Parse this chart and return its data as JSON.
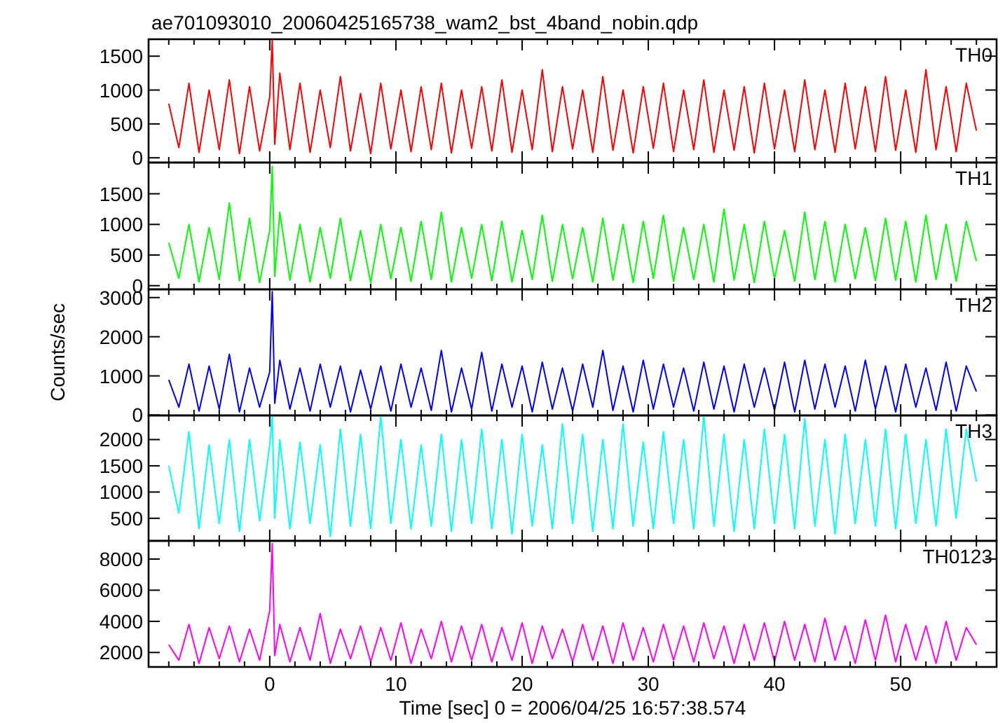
{
  "chart_data": [
    {
      "type": "line",
      "title": "ae701093010_20060425165738_wam2_bst_4band_nobin.qdp",
      "xlim": [
        -9.6,
        57.6
      ],
      "ylim": [
        -70,
        1750
      ],
      "yticks": [
        0,
        500,
        1000,
        1500
      ],
      "tick_labels": "y",
      "xticks": [
        {
          "value": -8,
          "label": null
        },
        {
          "value": -6,
          "label": null
        },
        {
          "value": -4,
          "label": null
        },
        {
          "value": -2,
          "label": null
        },
        0,
        {
          "value": 2,
          "label": null
        },
        {
          "value": 4,
          "label": null
        },
        {
          "value": 6,
          "label": null
        },
        {
          "value": 8,
          "label": null
        },
        10,
        {
          "value": 12,
          "label": null
        },
        {
          "value": 14,
          "label": null
        },
        {
          "value": 16,
          "label": null
        },
        {
          "value": 18,
          "label": null
        },
        20,
        {
          "value": 22,
          "label": null
        },
        {
          "value": 24,
          "label": null
        },
        {
          "value": 26,
          "label": null
        },
        {
          "value": 28,
          "label": null
        },
        30,
        {
          "value": 32,
          "label": null
        },
        {
          "value": 34,
          "label": null
        },
        {
          "value": 36,
          "label": null
        },
        {
          "value": 38,
          "label": null
        },
        40,
        {
          "value": 42,
          "label": null
        },
        {
          "value": 44,
          "label": null
        },
        {
          "value": 46,
          "label": null
        },
        {
          "value": 48,
          "label": null
        },
        50,
        {
          "value": 52,
          "label": null
        },
        {
          "value": 54,
          "label": null
        },
        {
          "value": 56,
          "label": null
        }
      ],
      "x": [
        -8,
        -7.2,
        -6.4,
        -5.6,
        -4.8,
        -4,
        -3.2,
        -2.4,
        -1.6,
        -0.8,
        0,
        0.2,
        0.4,
        0.8,
        1.6,
        2.4,
        3.2,
        4,
        4.8,
        5.6,
        6.4,
        7.2,
        8,
        8.8,
        9.6,
        10.4,
        11.2,
        12,
        12.8,
        13.6,
        14.4,
        15.2,
        16,
        16.8,
        17.6,
        18.4,
        19.2,
        20,
        20.8,
        21.6,
        22.4,
        23.2,
        24,
        24.8,
        25.6,
        26.4,
        27.2,
        28,
        28.8,
        29.6,
        30.4,
        31.2,
        32,
        32.8,
        33.6,
        34.4,
        35.2,
        36,
        36.8,
        37.6,
        38.4,
        39.2,
        40,
        40.8,
        41.6,
        42.4,
        43.2,
        44,
        44.8,
        45.6,
        46.4,
        47.2,
        48,
        48.8,
        49.6,
        50.4,
        51.2,
        52,
        52.8,
        53.6,
        54.4,
        55.2,
        56
      ],
      "series": [
        {
          "name": "TH0",
          "color": "#ff0000",
          "values": [
            800,
            150,
            1100,
            80,
            1000,
            120,
            1150,
            60,
            1050,
            100,
            900,
            1750,
            200,
            1250,
            120,
            1100,
            80,
            1000,
            150,
            1200,
            100,
            950,
            60,
            1100,
            130,
            1000,
            90,
            1050,
            120,
            1100,
            70,
            1000,
            140,
            1050,
            100,
            1150,
            80,
            1000,
            120,
            1300,
            90,
            1050,
            130,
            1000,
            80,
            1200,
            110,
            1000,
            70,
            1050,
            140,
            1100,
            90,
            1000,
            120,
            1150,
            80,
            1000,
            110,
            1050,
            70,
            1100,
            130,
            1000,
            90,
            1150,
            120,
            1000,
            80,
            1100,
            130,
            1050,
            90,
            1200,
            110,
            1000,
            80,
            1300,
            120,
            1050,
            90,
            1100,
            400
          ]
        }
      ]
    },
    {
      "type": "line",
      "xlim": [
        -9.6,
        57.6
      ],
      "ylim": [
        -60,
        2010
      ],
      "yticks": [
        0,
        500,
        1000,
        1500
      ],
      "tick_labels": "y",
      "xticks": [
        {
          "value": -8,
          "label": null
        },
        {
          "value": -6,
          "label": null
        },
        {
          "value": -4,
          "label": null
        },
        {
          "value": -2,
          "label": null
        },
        0,
        {
          "value": 2,
          "label": null
        },
        {
          "value": 4,
          "label": null
        },
        {
          "value": 6,
          "label": null
        },
        {
          "value": 8,
          "label": null
        },
        10,
        {
          "value": 12,
          "label": null
        },
        {
          "value": 14,
          "label": null
        },
        {
          "value": 16,
          "label": null
        },
        {
          "value": 18,
          "label": null
        },
        20,
        {
          "value": 22,
          "label": null
        },
        {
          "value": 24,
          "label": null
        },
        {
          "value": 26,
          "label": null
        },
        {
          "value": 28,
          "label": null
        },
        30,
        {
          "value": 32,
          "label": null
        },
        {
          "value": 34,
          "label": null
        },
        {
          "value": 36,
          "label": null
        },
        {
          "value": 38,
          "label": null
        },
        40,
        {
          "value": 42,
          "label": null
        },
        {
          "value": 44,
          "label": null
        },
        {
          "value": 46,
          "label": null
        },
        {
          "value": 48,
          "label": null
        },
        50,
        {
          "value": 52,
          "label": null
        },
        {
          "value": 54,
          "label": null
        },
        {
          "value": 56,
          "label": null
        }
      ],
      "x": [
        -8,
        -7.2,
        -6.4,
        -5.6,
        -4.8,
        -4,
        -3.2,
        -2.4,
        -1.6,
        -0.8,
        0,
        0.2,
        0.4,
        0.8,
        1.6,
        2.4,
        3.2,
        4,
        4.8,
        5.6,
        6.4,
        7.2,
        8,
        8.8,
        9.6,
        10.4,
        11.2,
        12,
        12.8,
        13.6,
        14.4,
        15.2,
        16,
        16.8,
        17.6,
        18.4,
        19.2,
        20,
        20.8,
        21.6,
        22.4,
        23.2,
        24,
        24.8,
        25.6,
        26.4,
        27.2,
        28,
        28.8,
        29.6,
        30.4,
        31.2,
        32,
        32.8,
        33.6,
        34.4,
        35.2,
        36,
        36.8,
        37.6,
        38.4,
        39.2,
        40,
        40.8,
        41.6,
        42.4,
        43.2,
        44,
        44.8,
        45.6,
        46.4,
        47.2,
        48,
        48.8,
        49.6,
        50.4,
        51.2,
        52,
        52.8,
        53.6,
        54.4,
        55.2,
        56
      ],
      "series": [
        {
          "name": "TH1",
          "color": "#00ff00",
          "values": [
            700,
            120,
            1000,
            60,
            950,
            100,
            1350,
            80,
            1100,
            50,
            900,
            1950,
            150,
            1200,
            90,
            1000,
            60,
            950,
            120,
            1100,
            80,
            900,
            50,
            1000,
            110,
            950,
            70,
            1050,
            100,
            1200,
            60,
            950,
            120,
            1000,
            80,
            1050,
            60,
            900,
            100,
            1150,
            70,
            1000,
            110,
            950,
            60,
            1100,
            90,
            1000,
            50,
            1050,
            120,
            1150,
            70,
            950,
            100,
            1000,
            60,
            1250,
            90,
            1000,
            50,
            1050,
            110,
            900,
            70,
            1200,
            100,
            1050,
            60,
            1000,
            110,
            950,
            80,
            1100,
            90,
            1050,
            60,
            1150,
            100,
            1000,
            70,
            1050,
            400
          ]
        }
      ]
    },
    {
      "type": "line",
      "ylabel": "Counts/sec",
      "xlim": [
        -9.6,
        57.6
      ],
      "ylim": [
        -10,
        3210
      ],
      "yticks": [
        0,
        1000,
        2000,
        3000
      ],
      "tick_labels": "y",
      "xticks": [
        {
          "value": -8,
          "label": null
        },
        {
          "value": -6,
          "label": null
        },
        {
          "value": -4,
          "label": null
        },
        {
          "value": -2,
          "label": null
        },
        0,
        {
          "value": 2,
          "label": null
        },
        {
          "value": 4,
          "label": null
        },
        {
          "value": 6,
          "label": null
        },
        {
          "value": 8,
          "label": null
        },
        10,
        {
          "value": 12,
          "label": null
        },
        {
          "value": 14,
          "label": null
        },
        {
          "value": 16,
          "label": null
        },
        {
          "value": 18,
          "label": null
        },
        20,
        {
          "value": 22,
          "label": null
        },
        {
          "value": 24,
          "label": null
        },
        {
          "value": 26,
          "label": null
        },
        {
          "value": 28,
          "label": null
        },
        30,
        {
          "value": 32,
          "label": null
        },
        {
          "value": 34,
          "label": null
        },
        {
          "value": 36,
          "label": null
        },
        {
          "value": 38,
          "label": null
        },
        40,
        {
          "value": 42,
          "label": null
        },
        {
          "value": 44,
          "label": null
        },
        {
          "value": 46,
          "label": null
        },
        {
          "value": 48,
          "label": null
        },
        50,
        {
          "value": 52,
          "label": null
        },
        {
          "value": 54,
          "label": null
        },
        {
          "value": 56,
          "label": null
        }
      ],
      "x": [
        -8,
        -7.2,
        -6.4,
        -5.6,
        -4.8,
        -4,
        -3.2,
        -2.4,
        -1.6,
        -0.8,
        0,
        0.2,
        0.4,
        0.8,
        1.6,
        2.4,
        3.2,
        4,
        4.8,
        5.6,
        6.4,
        7.2,
        8,
        8.8,
        9.6,
        10.4,
        11.2,
        12,
        12.8,
        13.6,
        14.4,
        15.2,
        16,
        16.8,
        17.6,
        18.4,
        19.2,
        20,
        20.8,
        21.6,
        22.4,
        23.2,
        24,
        24.8,
        25.6,
        26.4,
        27.2,
        28,
        28.8,
        29.6,
        30.4,
        31.2,
        32,
        32.8,
        33.6,
        34.4,
        35.2,
        36,
        36.8,
        37.6,
        38.4,
        39.2,
        40,
        40.8,
        41.6,
        42.4,
        43.2,
        44,
        44.8,
        45.6,
        46.4,
        47.2,
        48,
        48.8,
        49.6,
        50.4,
        51.2,
        52,
        52.8,
        53.6,
        54.4,
        55.2,
        56
      ],
      "series": [
        {
          "name": "TH2",
          "color": "#0000ff",
          "values": [
            900,
            200,
            1300,
            100,
            1250,
            150,
            1550,
            80,
            1200,
            200,
            1100,
            3150,
            300,
            1400,
            150,
            1200,
            100,
            1300,
            200,
            1250,
            80,
            1150,
            150,
            1250,
            100,
            1300,
            200,
            1200,
            120,
            1650,
            80,
            1200,
            150,
            1600,
            100,
            1300,
            200,
            1250,
            80,
            1350,
            150,
            1200,
            100,
            1300,
            200,
            1650,
            120,
            1250,
            80,
            1400,
            150,
            1300,
            200,
            1200,
            100,
            1350,
            150,
            1250,
            80,
            1300,
            200,
            1200,
            120,
            1350,
            80,
            1400,
            150,
            1300,
            200,
            1250,
            100,
            1400,
            150,
            1250,
            80,
            1300,
            200,
            1200,
            120,
            1350,
            100,
            1250,
            600
          ]
        }
      ]
    },
    {
      "type": "line",
      "xlim": [
        -9.6,
        57.6
      ],
      "ylim": [
        70,
        2460
      ],
      "yticks": [
        500,
        1000,
        1500,
        2000
      ],
      "tick_labels": "y",
      "xticks": [
        {
          "value": -8,
          "label": null
        },
        {
          "value": -6,
          "label": null
        },
        {
          "value": -4,
          "label": null
        },
        {
          "value": -2,
          "label": null
        },
        0,
        {
          "value": 2,
          "label": null
        },
        {
          "value": 4,
          "label": null
        },
        {
          "value": 6,
          "label": null
        },
        {
          "value": 8,
          "label": null
        },
        10,
        {
          "value": 12,
          "label": null
        },
        {
          "value": 14,
          "label": null
        },
        {
          "value": 16,
          "label": null
        },
        {
          "value": 18,
          "label": null
        },
        20,
        {
          "value": 22,
          "label": null
        },
        {
          "value": 24,
          "label": null
        },
        {
          "value": 26,
          "label": null
        },
        {
          "value": 28,
          "label": null
        },
        30,
        {
          "value": 32,
          "label": null
        },
        {
          "value": 34,
          "label": null
        },
        {
          "value": 36,
          "label": null
        },
        {
          "value": 38,
          "label": null
        },
        40,
        {
          "value": 42,
          "label": null
        },
        {
          "value": 44,
          "label": null
        },
        {
          "value": 46,
          "label": null
        },
        {
          "value": 48,
          "label": null
        },
        50,
        {
          "value": 52,
          "label": null
        },
        {
          "value": 54,
          "label": null
        },
        {
          "value": 56,
          "label": null
        }
      ],
      "x": [
        -8,
        -7.2,
        -6.4,
        -5.6,
        -4.8,
        -4,
        -3.2,
        -2.4,
        -1.6,
        -0.8,
        0,
        0.2,
        0.4,
        0.8,
        1.6,
        2.4,
        3.2,
        4,
        4.8,
        5.6,
        6.4,
        7.2,
        8,
        8.8,
        9.6,
        10.4,
        11.2,
        12,
        12.8,
        13.6,
        14.4,
        15.2,
        16,
        16.8,
        17.6,
        18.4,
        19.2,
        20,
        20.8,
        21.6,
        22.4,
        23.2,
        24,
        24.8,
        25.6,
        26.4,
        27.2,
        28,
        28.8,
        29.6,
        30.4,
        31.2,
        32,
        32.8,
        33.6,
        34.4,
        35.2,
        36,
        36.8,
        37.6,
        38.4,
        39.2,
        40,
        40.8,
        41.6,
        42.4,
        43.2,
        44,
        44.8,
        45.6,
        46.4,
        47.2,
        48,
        48.8,
        49.6,
        50.4,
        51.2,
        52,
        52.8,
        53.6,
        54.4,
        55.2,
        56
      ],
      "series": [
        {
          "name": "TH3",
          "color": "#00ffff",
          "values": [
            1500,
            600,
            2150,
            300,
            1900,
            400,
            2000,
            250,
            2000,
            450,
            1900,
            2460,
            500,
            2000,
            300,
            1950,
            400,
            1900,
            150,
            2200,
            350,
            2100,
            300,
            2450,
            400,
            2000,
            300,
            1900,
            350,
            2100,
            250,
            2000,
            400,
            2200,
            300,
            2000,
            200,
            2100,
            350,
            1900,
            300,
            2300,
            400,
            2100,
            250,
            2000,
            300,
            2300,
            350,
            1950,
            300,
            2150,
            400,
            2000,
            300,
            2450,
            350,
            2100,
            250,
            2000,
            300,
            2200,
            400,
            2100,
            300,
            2400,
            350,
            2000,
            200,
            2100,
            400,
            2000,
            350,
            2200,
            300,
            2100,
            400,
            2000,
            350,
            2200,
            500,
            2200,
            1200
          ]
        }
      ]
    },
    {
      "type": "line",
      "xlabel": "Time [sec] 0 = 2006/04/25 16:57:38.574",
      "xlim": [
        -9.6,
        57.6
      ],
      "ylim": [
        1070,
        9170
      ],
      "yticks": [
        2000,
        4000,
        6000,
        8000
      ],
      "xticks": [
        {
          "value": -8,
          "label": null
        },
        {
          "value": -6,
          "label": null
        },
        {
          "value": -4,
          "label": null
        },
        {
          "value": -2,
          "label": null
        },
        0,
        {
          "value": 2,
          "label": null
        },
        {
          "value": 4,
          "label": null
        },
        {
          "value": 6,
          "label": null
        },
        {
          "value": 8,
          "label": null
        },
        10,
        {
          "value": 12,
          "label": null
        },
        {
          "value": 14,
          "label": null
        },
        {
          "value": 16,
          "label": null
        },
        {
          "value": 18,
          "label": null
        },
        20,
        {
          "value": 22,
          "label": null
        },
        {
          "value": 24,
          "label": null
        },
        {
          "value": 26,
          "label": null
        },
        {
          "value": 28,
          "label": null
        },
        30,
        {
          "value": 32,
          "label": null
        },
        {
          "value": 34,
          "label": null
        },
        {
          "value": 36,
          "label": null
        },
        {
          "value": 38,
          "label": null
        },
        40,
        {
          "value": 42,
          "label": null
        },
        {
          "value": 44,
          "label": null
        },
        {
          "value": 46,
          "label": null
        },
        {
          "value": 48,
          "label": null
        },
        50,
        {
          "value": 52,
          "label": null
        },
        {
          "value": 54,
          "label": null
        },
        {
          "value": 56,
          "label": null
        }
      ],
      "x": [
        -8,
        -7.2,
        -6.4,
        -5.6,
        -4.8,
        -4,
        -3.2,
        -2.4,
        -1.6,
        -0.8,
        0,
        0.2,
        0.4,
        0.8,
        1.6,
        2.4,
        3.2,
        4,
        4.8,
        5.6,
        6.4,
        7.2,
        8,
        8.8,
        9.6,
        10.4,
        11.2,
        12,
        12.8,
        13.6,
        14.4,
        15.2,
        16,
        16.8,
        17.6,
        18.4,
        19.2,
        20,
        20.8,
        21.6,
        22.4,
        23.2,
        24,
        24.8,
        25.6,
        26.4,
        27.2,
        28,
        28.8,
        29.6,
        30.4,
        31.2,
        32,
        32.8,
        33.6,
        34.4,
        35.2,
        36,
        36.8,
        37.6,
        38.4,
        39.2,
        40,
        40.8,
        41.6,
        42.4,
        43.2,
        44,
        44.8,
        45.6,
        46.4,
        47.2,
        48,
        48.8,
        49.6,
        50.4,
        51.2,
        52,
        52.8,
        53.6,
        54.4,
        55.2,
        56
      ],
      "series": [
        {
          "name": "TH0123",
          "color": "#ff00ff",
          "values": [
            2500,
            1500,
            3800,
            1300,
            3600,
            1600,
            3700,
            1400,
            3500,
            1500,
            4700,
            9000,
            1800,
            3800,
            1400,
            3600,
            1500,
            4500,
            1300,
            3500,
            1600,
            3700,
            1400,
            3600,
            1500,
            3900,
            1300,
            3500,
            1600,
            4000,
            1400,
            3700,
            1500,
            3800,
            1400,
            3600,
            1500,
            3900,
            1300,
            3700,
            1600,
            3500,
            1400,
            3800,
            1500,
            3700,
            1300,
            3900,
            1500,
            3600,
            1400,
            3800,
            1500,
            3700,
            1400,
            3900,
            1600,
            3700,
            1300,
            3800,
            1500,
            3900,
            1400,
            4000,
            1500,
            3800,
            1400,
            4200,
            1500,
            3700,
            1300,
            4100,
            1500,
            4400,
            1400,
            3800,
            1500,
            3700,
            1300,
            4000,
            1500,
            3600,
            2500
          ]
        }
      ]
    }
  ]
}
